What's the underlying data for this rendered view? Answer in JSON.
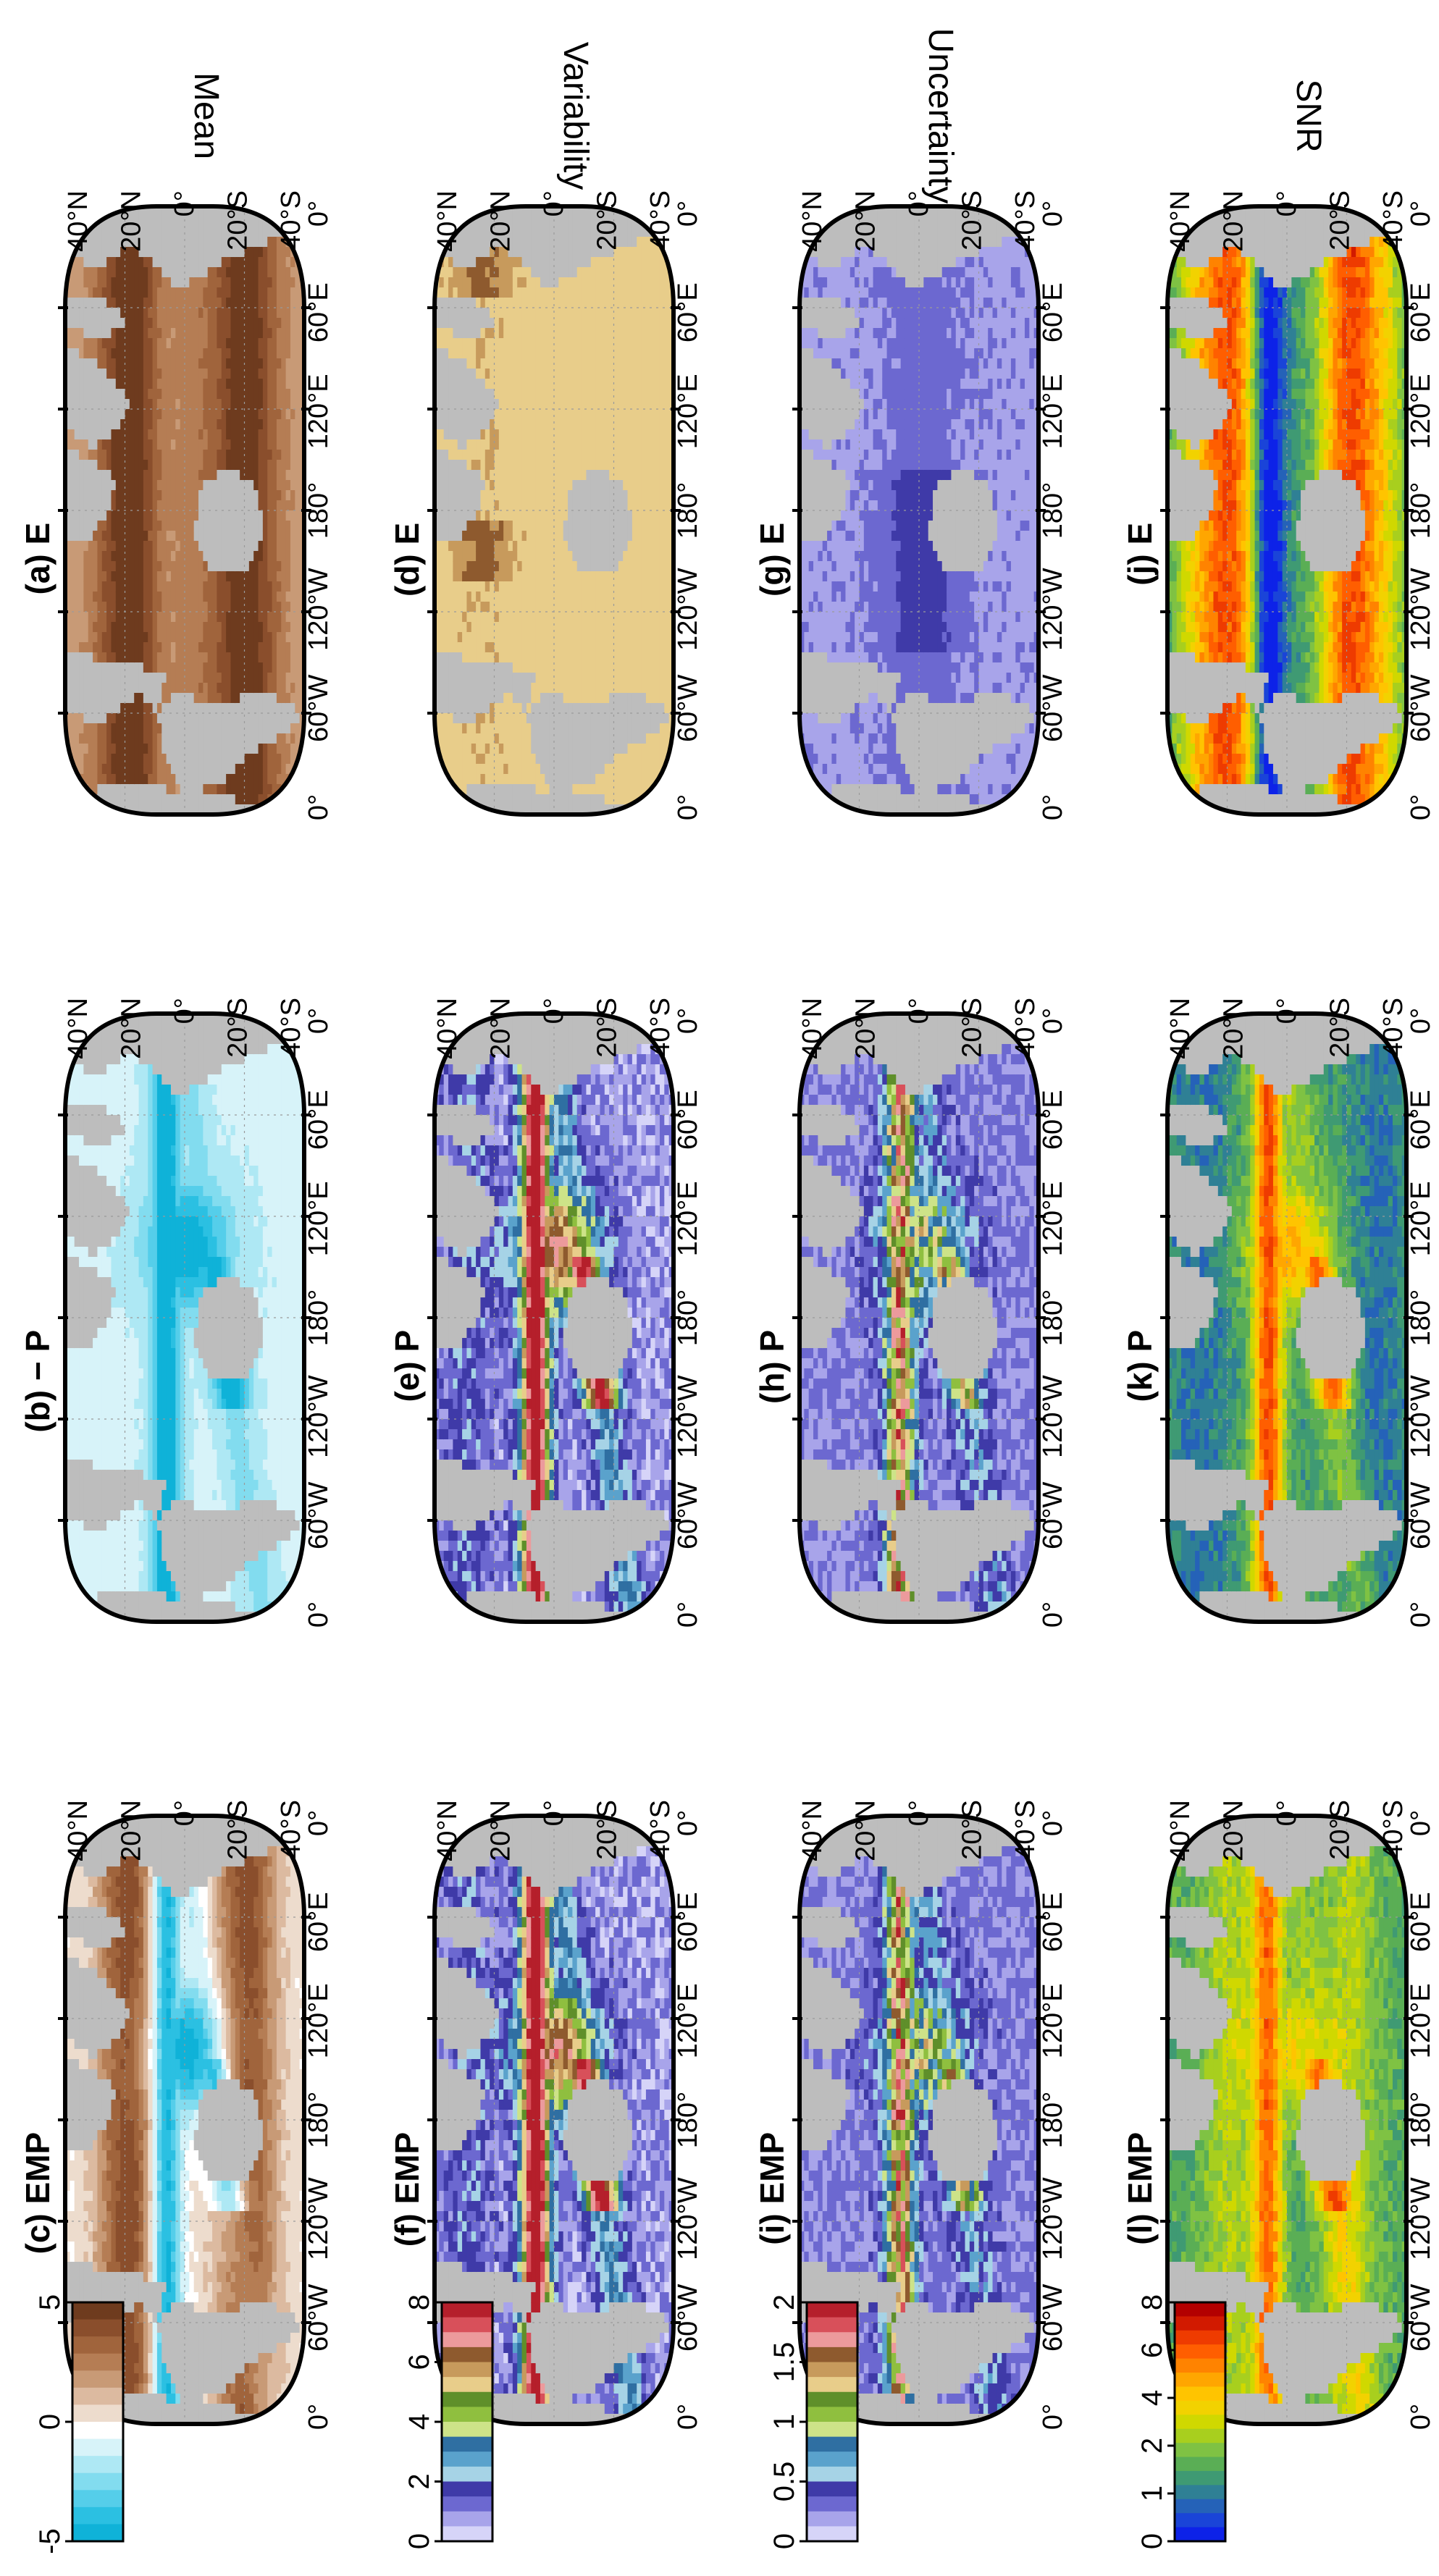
{
  "rows": [
    {
      "label": "Mean"
    },
    {
      "label": "Variability"
    },
    {
      "label": "Uncertainty"
    },
    {
      "label": "SNR"
    }
  ],
  "panels": [
    {
      "title": "(a) E",
      "row": 0,
      "col": 0,
      "colormap": "mean",
      "pattern": "evap_mean"
    },
    {
      "title": "(b) − P",
      "row": 0,
      "col": 1,
      "colormap": "mean",
      "pattern": "precip_mean"
    },
    {
      "title": "(c) EMP",
      "row": 0,
      "col": 2,
      "colormap": "mean",
      "pattern": "emp_mean"
    },
    {
      "title": "(d) E",
      "row": 1,
      "col": 0,
      "colormap": "var",
      "pattern": "evap_var"
    },
    {
      "title": "(e) P",
      "row": 1,
      "col": 1,
      "colormap": "var",
      "pattern": "precip_var"
    },
    {
      "title": "(f) EMP",
      "row": 1,
      "col": 2,
      "colormap": "var",
      "pattern": "precip_var"
    },
    {
      "title": "(g) E",
      "row": 2,
      "col": 0,
      "colormap": "unc",
      "pattern": "evap_unc"
    },
    {
      "title": "(h) P",
      "row": 2,
      "col": 1,
      "colormap": "unc",
      "pattern": "precip_unc"
    },
    {
      "title": "(i) EMP",
      "row": 2,
      "col": 2,
      "colormap": "unc",
      "pattern": "precip_unc"
    },
    {
      "title": "(j) E",
      "row": 3,
      "col": 0,
      "colormap": "snr",
      "pattern": "evap_snr"
    },
    {
      "title": "(k) P",
      "row": 3,
      "col": 1,
      "colormap": "snr",
      "pattern": "precip_snr"
    },
    {
      "title": "(l) EMP",
      "row": 3,
      "col": 2,
      "colormap": "snr",
      "pattern": "emp_snr"
    }
  ],
  "lat_labels": [
    "40°N",
    "20°N",
    "0°",
    "20°S",
    "40°S"
  ],
  "lon_labels": [
    "0°",
    "60°E",
    "120°E",
    "180°",
    "120°W",
    "60°W",
    "0°"
  ],
  "colorbars": [
    {
      "row": 0,
      "ticks": [
        "5",
        "0",
        "-5"
      ],
      "colors": [
        "#6e3b1e",
        "#8a4e2c",
        "#a0643c",
        "#b57d54",
        "#c89a76",
        "#dcbaa0",
        "#eddccd",
        "#ffffff",
        "#d7f3f9",
        "#aee8f4",
        "#82dcef",
        "#55ceea",
        "#2bc0e2",
        "#0fb2d8"
      ]
    },
    {
      "row": 1,
      "ticks": [
        "8",
        "6",
        "4",
        "2",
        "0"
      ],
      "colors": [
        "#b51f2b",
        "#d8505a",
        "#ec9a9c",
        "#8e5a2e",
        "#c79a5c",
        "#e8cd8a",
        "#5f8f2a",
        "#8fbf3f",
        "#cde388",
        "#2f6fa2",
        "#5aa2cc",
        "#a6d3e6",
        "#3f3aa8",
        "#6c68d0",
        "#a8a4ea",
        "#d6d4f8"
      ]
    },
    {
      "row": 2,
      "ticks": [
        "2",
        "1.5",
        "1",
        "0.5",
        "0"
      ],
      "colors": [
        "#b51f2b",
        "#d8505a",
        "#ec9a9c",
        "#8e5a2e",
        "#c79a5c",
        "#e8cd8a",
        "#5f8f2a",
        "#8fbf3f",
        "#cde388",
        "#2f6fa2",
        "#5aa2cc",
        "#a6d3e6",
        "#3f3aa8",
        "#6c68d0",
        "#a8a4ea",
        "#d6d4f8"
      ]
    },
    {
      "row": 3,
      "ticks": [
        "8",
        "6",
        "4",
        "2",
        "1",
        "0"
      ],
      "colors": [
        "#b30000",
        "#d21a00",
        "#ee3b00",
        "#ff5e00",
        "#ff8300",
        "#ffa600",
        "#ffc400",
        "#f2d200",
        "#d0d800",
        "#a8cf1e",
        "#7fc243",
        "#5aae55",
        "#3f9a73",
        "#2f8095",
        "#2562b8",
        "#1a44d8",
        "#0d22e8"
      ]
    }
  ],
  "colors": {
    "land": "#bdbdbd",
    "frame": "#000000",
    "grid": "#9a9a9a"
  }
}
